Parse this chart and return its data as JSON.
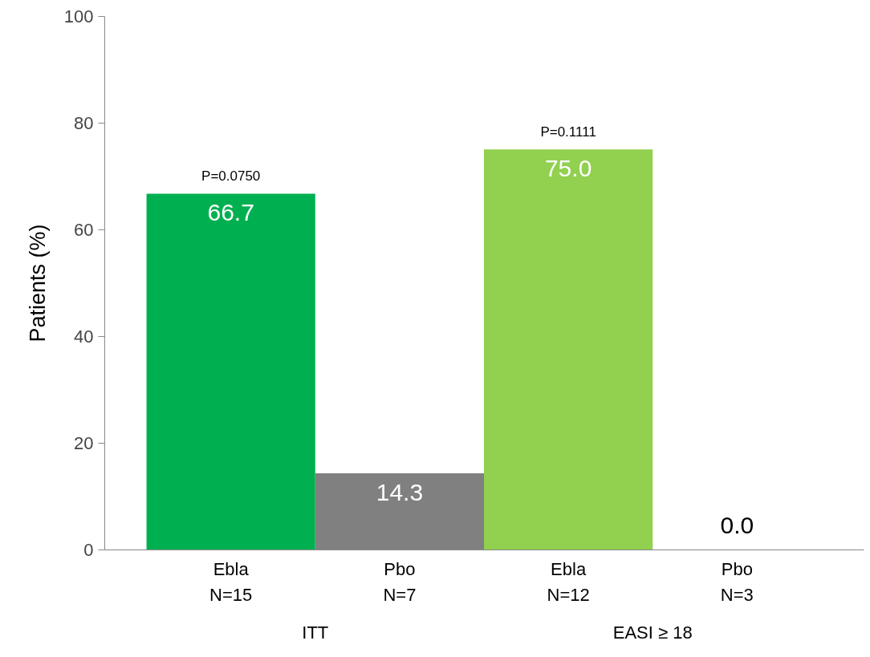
{
  "chart_data": {
    "type": "bar",
    "ylabel": "Patients (%)",
    "categories": [
      "Ebla\nN=15",
      "Pbo\nN=7",
      "Ebla\nN=12",
      "Pbo\nN=3"
    ],
    "values": [
      66.7,
      14.3,
      75.0,
      0.0
    ],
    "colors": [
      "#00b050",
      "#808080",
      "#92d050",
      "#808080"
    ],
    "value_labels": [
      "66.7",
      "14.3",
      "75.0",
      "0.0"
    ],
    "ylim": [
      0,
      100
    ],
    "yticks": [
      0,
      20,
      40,
      60,
      80,
      100
    ],
    "grid": false,
    "annotations": [
      {
        "text": "P=0.0750",
        "x": "Ebla\nN=15",
        "y": 66.7
      },
      {
        "text": "P=0.1111",
        "x": "Ebla\nN=12",
        "y": 75.0
      },
      "ITT",
      "EASI ≥ 18"
    ]
  }
}
